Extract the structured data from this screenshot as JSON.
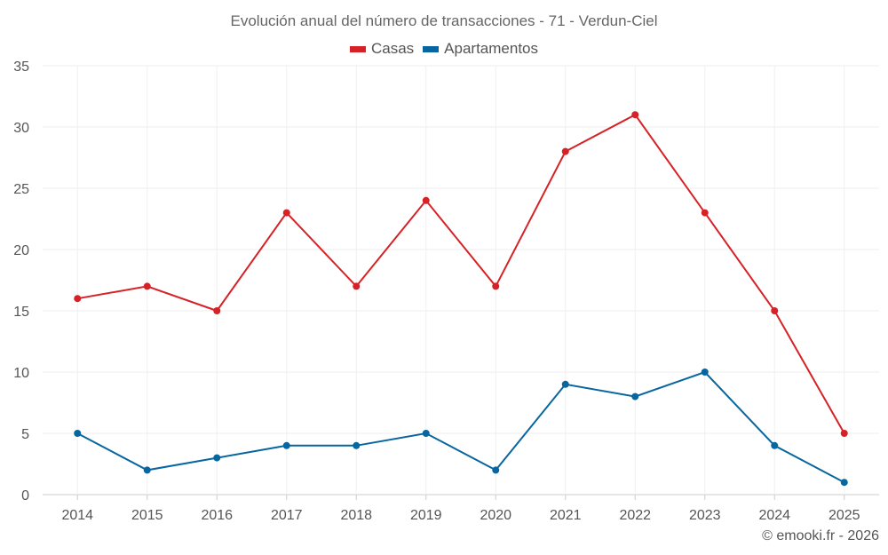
{
  "chart_data": {
    "type": "line",
    "title": "Evolución anual del número de transacciones - 71 - Verdun-Ciel",
    "categories": [
      "2014",
      "2015",
      "2016",
      "2017",
      "2018",
      "2019",
      "2020",
      "2021",
      "2022",
      "2023",
      "2024",
      "2025"
    ],
    "series": [
      {
        "name": "Casas",
        "color": "#d62226",
        "values": [
          16,
          17,
          15,
          23,
          17,
          24,
          17,
          28,
          31,
          23,
          15,
          5
        ]
      },
      {
        "name": "Apartamentos",
        "color": "#07659f",
        "values": [
          5,
          2,
          3,
          4,
          4,
          5,
          2,
          9,
          8,
          10,
          4,
          1
        ]
      }
    ],
    "ylim": [
      0,
      35
    ],
    "yticks": [
      0,
      5,
      10,
      15,
      20,
      25,
      30,
      35
    ],
    "grid": true,
    "legend": "top-center",
    "xlabel": "",
    "ylabel": ""
  },
  "credit": "© emooki.fr - 2026"
}
